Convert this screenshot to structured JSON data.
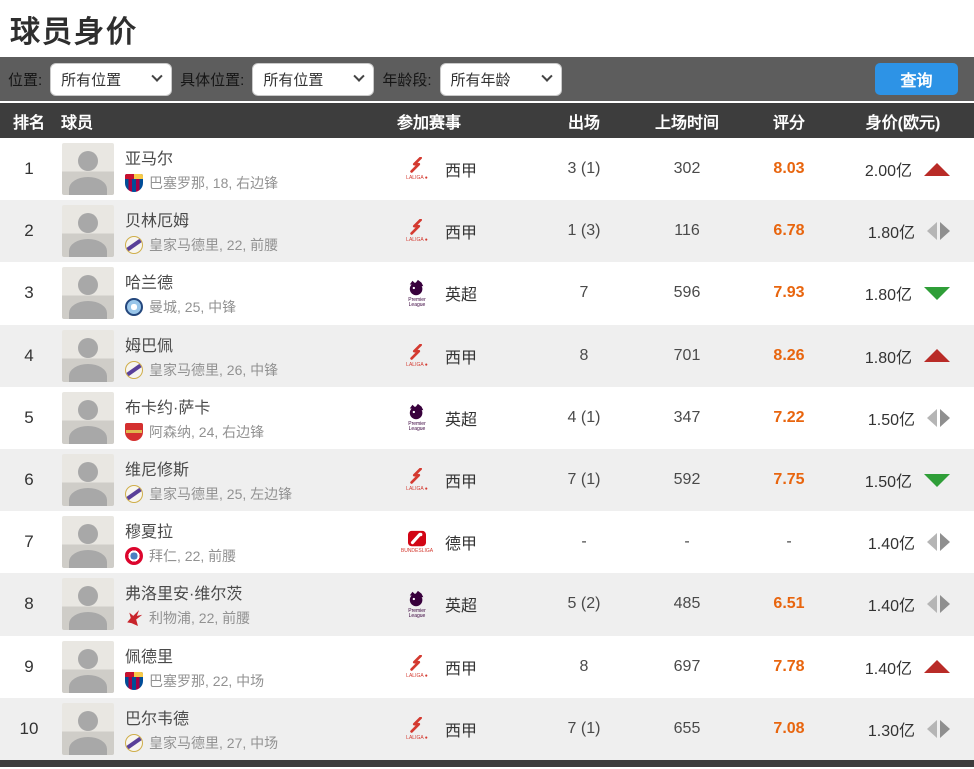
{
  "page": {
    "title": "球员身价"
  },
  "filters": {
    "position_label": "位置:",
    "position_value": "所有位置",
    "specific_label": "具体位置:",
    "specific_value": "所有位置",
    "age_label": "年龄段:",
    "age_value": "所有年龄",
    "search_label": "查询"
  },
  "colors": {
    "accent_blue": "#2d93e6",
    "rating_orange": "#e8650e",
    "trend_up_red": "#b92b27",
    "trend_down_green": "#2f9e38",
    "trend_flat_gray": "#9e9e9e",
    "header_dark": "#3d3d3d",
    "filterbar_gray": "#5d5d5d"
  },
  "leagues": {
    "laliga": {
      "name": "西甲",
      "caption": "LALIGA ●"
    },
    "premier": {
      "name": "英超",
      "caption": "Premier League"
    },
    "bundesliga": {
      "name": "德甲",
      "caption": "BUNDESLIGA"
    }
  },
  "table": {
    "headers": {
      "rank": "排名",
      "player": "球员",
      "league": "参加赛事",
      "apps": "出场",
      "minutes": "上场时间",
      "rating": "评分",
      "value": "身价(欧元)"
    },
    "rows": [
      {
        "rank": "1",
        "name": "亚马尔",
        "club_key": "barcelona",
        "info": "巴塞罗那, 18, 右边锋",
        "league": "laliga",
        "apps": "3 (1)",
        "minutes": "302",
        "rating": "8.03",
        "value": "2.00亿",
        "trend": "up"
      },
      {
        "rank": "2",
        "name": "贝林厄姆",
        "club_key": "realmadrid",
        "info": "皇家马德里, 22, 前腰",
        "league": "laliga",
        "apps": "1 (3)",
        "minutes": "116",
        "rating": "6.78",
        "value": "1.80亿",
        "trend": "flat"
      },
      {
        "rank": "3",
        "name": "哈兰德",
        "club_key": "mancity",
        "info": "曼城, 25, 中锋",
        "league": "premier",
        "apps": "7",
        "minutes": "596",
        "rating": "7.93",
        "value": "1.80亿",
        "trend": "down"
      },
      {
        "rank": "4",
        "name": "姆巴佩",
        "club_key": "realmadrid",
        "info": "皇家马德里, 26, 中锋",
        "league": "laliga",
        "apps": "8",
        "minutes": "701",
        "rating": "8.26",
        "value": "1.80亿",
        "trend": "up"
      },
      {
        "rank": "5",
        "name": "布卡约·萨卡",
        "club_key": "arsenal",
        "info": "阿森纳, 24, 右边锋",
        "league": "premier",
        "apps": "4 (1)",
        "minutes": "347",
        "rating": "7.22",
        "value": "1.50亿",
        "trend": "flat"
      },
      {
        "rank": "6",
        "name": "维尼修斯",
        "club_key": "realmadrid",
        "info": "皇家马德里, 25, 左边锋",
        "league": "laliga",
        "apps": "7 (1)",
        "minutes": "592",
        "rating": "7.75",
        "value": "1.50亿",
        "trend": "down"
      },
      {
        "rank": "7",
        "name": "穆夏拉",
        "club_key": "bayern",
        "info": "拜仁, 22, 前腰",
        "league": "bundesliga",
        "apps": "-",
        "minutes": "-",
        "rating": "-",
        "value": "1.40亿",
        "trend": "flat"
      },
      {
        "rank": "8",
        "name": "弗洛里安·维尔茨",
        "club_key": "liverpool",
        "info": "利物浦, 22, 前腰",
        "league": "premier",
        "apps": "5 (2)",
        "minutes": "485",
        "rating": "6.51",
        "value": "1.40亿",
        "trend": "flat"
      },
      {
        "rank": "9",
        "name": "佩德里",
        "club_key": "barcelona",
        "info": "巴塞罗那, 22, 中场",
        "league": "laliga",
        "apps": "8",
        "minutes": "697",
        "rating": "7.78",
        "value": "1.40亿",
        "trend": "up"
      },
      {
        "rank": "10",
        "name": "巴尔韦德",
        "club_key": "realmadrid",
        "info": "皇家马德里, 27, 中场",
        "league": "laliga",
        "apps": "7 (1)",
        "minutes": "655",
        "rating": "7.08",
        "value": "1.30亿",
        "trend": "flat"
      }
    ]
  }
}
